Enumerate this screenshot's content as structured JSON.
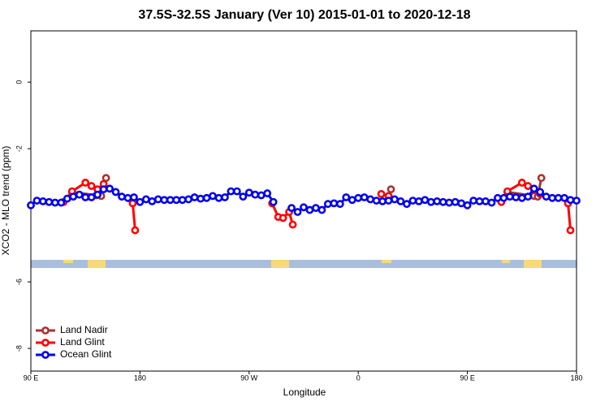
{
  "chart_data": {
    "type": "line",
    "title": "37.5S-32.5S January (Ver 10)   2015-01-01 to 2020-12-18",
    "x_label": "Longitude",
    "y_label": "XCO2 - MLO trend (ppm)",
    "xlim": [
      90,
      540
    ],
    "xticks": [
      {
        "value": 90,
        "label": "90 E"
      },
      180,
      {
        "value": 270,
        "label": "90 W"
      },
      {
        "value": 360,
        "label": "0"
      },
      {
        "value": 450,
        "label": "90 E"
      },
      {
        "value": 540,
        "label": "180"
      }
    ],
    "ylim": [
      -8.68,
      1.54
    ],
    "yticks": [
      -8,
      -6,
      -2,
      0
    ],
    "legend": "bottom-left",
    "series": [
      {
        "name": "Land Nadir",
        "color": "#a83232",
        "x": [
          124,
          144,
          148,
          152,
          200,
          387,
          420,
          483,
          505,
          508,
          511
        ],
        "values": [
          -3.3,
          -3.4,
          -3.42,
          -2.88,
          null,
          -3.22,
          null,
          -3.3,
          -3.42,
          -3.44,
          -2.88
        ]
      },
      {
        "name": "Land Glint",
        "color": "#ff0000",
        "x": [
          117,
          124,
          135,
          140,
          145,
          150,
          174,
          176,
          180,
          289,
          294,
          298,
          303,
          306,
          340,
          379,
          385,
          420,
          478,
          483,
          495,
          500,
          505,
          510,
          520,
          533,
          535
        ],
        "values": [
          -3.6,
          -3.28,
          -3.02,
          -3.12,
          -3.22,
          -3.06,
          -3.64,
          -4.45,
          null,
          -3.64,
          -4.05,
          -4.08,
          -3.9,
          -4.28,
          null,
          -3.36,
          -3.42,
          null,
          -3.6,
          -3.28,
          -3.02,
          -3.12,
          -3.22,
          -3.36,
          null,
          -3.64,
          -4.45
        ]
      },
      {
        "name": "Ocean Glint",
        "color": "#0000ee",
        "x": [
          90,
          95,
          100,
          105,
          110,
          115,
          120,
          125,
          130,
          135,
          140,
          145,
          150,
          155,
          160,
          165,
          170,
          175,
          180,
          185,
          190,
          195,
          200,
          205,
          210,
          215,
          220,
          225,
          230,
          235,
          240,
          245,
          250,
          255,
          260,
          265,
          270,
          275,
          280,
          285,
          290,
          295,
          300,
          305,
          310,
          315,
          320,
          325,
          330,
          335,
          340,
          345,
          350,
          355,
          360,
          365,
          370,
          375,
          380,
          385,
          390,
          395,
          400,
          405,
          410,
          415,
          420,
          425,
          430,
          435,
          440,
          445,
          450,
          455,
          460,
          465,
          470,
          475,
          480,
          485,
          490,
          495,
          500,
          505,
          510,
          515,
          520,
          525,
          530,
          535,
          540
        ],
        "values": [
          -3.7,
          -3.56,
          -3.58,
          -3.6,
          -3.62,
          -3.62,
          -3.5,
          -3.44,
          -3.38,
          -3.46,
          -3.46,
          -3.38,
          -3.22,
          -3.2,
          -3.3,
          -3.44,
          -3.48,
          -3.46,
          -3.6,
          -3.52,
          -3.58,
          -3.52,
          -3.54,
          -3.54,
          -3.54,
          -3.54,
          -3.52,
          -3.46,
          -3.5,
          -3.48,
          -3.42,
          -3.48,
          -3.46,
          -3.28,
          -3.28,
          -3.44,
          -3.32,
          -3.38,
          -3.4,
          -3.34,
          -3.6,
          null,
          null,
          -3.78,
          -3.9,
          -3.76,
          -3.84,
          -3.78,
          -3.84,
          -3.66,
          -3.64,
          -3.66,
          -3.46,
          -3.54,
          -3.48,
          -3.46,
          -3.52,
          -3.56,
          -3.58,
          -3.56,
          -3.52,
          -3.58,
          -3.66,
          -3.56,
          -3.58,
          -3.54,
          -3.6,
          -3.58,
          -3.6,
          -3.62,
          -3.6,
          -3.64,
          -3.7,
          -3.56,
          -3.58,
          -3.58,
          -3.62,
          -3.48,
          -3.48,
          -3.44,
          -3.46,
          -3.48,
          -3.44,
          -3.2,
          -3.3,
          -3.44,
          -3.48,
          -3.48,
          -3.48,
          -3.54,
          -3.56
        ]
      }
    ]
  }
}
